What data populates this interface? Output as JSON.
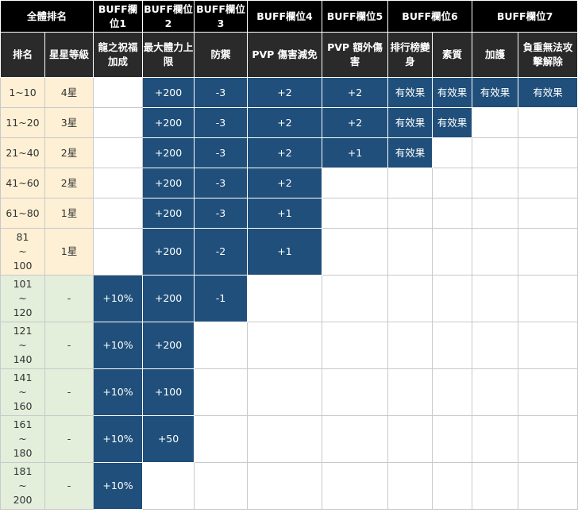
{
  "header": {
    "group": "全體排名",
    "slots": [
      "BUFF欄位1",
      "BUFF欄位2",
      "BUFF欄位3",
      "BUFF欄位4",
      "BUFF欄位5",
      "BUFF欄位6",
      "BUFF欄位7"
    ]
  },
  "subheader": [
    "排名",
    "星星等級",
    "龍之祝福加成",
    "最大體力上限",
    "防禦",
    "PVP 傷害減免",
    "PVP 額外傷害",
    "排行榜變身",
    "素質",
    "加護",
    "負重無法攻擊解除"
  ],
  "rows": [
    {
      "rank": "1~10",
      "star": "4星",
      "c1": "",
      "c2": "+200",
      "c3": "-3",
      "c4": "+2",
      "c5": "+2",
      "c6": "有效果",
      "c7": "有效果",
      "c8": "有效果",
      "c9": "有效果"
    },
    {
      "rank": "11~20",
      "star": "3星",
      "c1": "",
      "c2": "+200",
      "c3": "-3",
      "c4": "+2",
      "c5": "+2",
      "c6": "有效果",
      "c7": "有效果",
      "c8": "",
      "c9": ""
    },
    {
      "rank": "21~40",
      "star": "2星",
      "c1": "",
      "c2": "+200",
      "c3": "-3",
      "c4": "+2",
      "c5": "+1",
      "c6": "有效果",
      "c7": "",
      "c8": "",
      "c9": ""
    },
    {
      "rank": "41~60",
      "star": "2星",
      "c1": "",
      "c2": "+200",
      "c3": "-3",
      "c4": "+2",
      "c5": "",
      "c6": "",
      "c7": "",
      "c8": "",
      "c9": ""
    },
    {
      "rank": "61~80",
      "star": "1星",
      "c1": "",
      "c2": "+200",
      "c3": "-3",
      "c4": "+1",
      "c5": "",
      "c6": "",
      "c7": "",
      "c8": "",
      "c9": ""
    },
    {
      "rank": "81\n~\n100",
      "star": "1星",
      "c1": "",
      "c2": "+200",
      "c3": "-2",
      "c4": "+1",
      "c5": "",
      "c6": "",
      "c7": "",
      "c8": "",
      "c9": ""
    },
    {
      "rank": "101\n~\n120",
      "star": "-",
      "c1": "+10%",
      "c2": "+200",
      "c3": "-1",
      "c4": "",
      "c5": "",
      "c6": "",
      "c7": "",
      "c8": "",
      "c9": ""
    },
    {
      "rank": "121\n~\n140",
      "star": "-",
      "c1": "+10%",
      "c2": "+200",
      "c3": "",
      "c4": "",
      "c5": "",
      "c6": "",
      "c7": "",
      "c8": "",
      "c9": ""
    },
    {
      "rank": "141\n~\n160",
      "star": "-",
      "c1": "+10%",
      "c2": "+100",
      "c3": "",
      "c4": "",
      "c5": "",
      "c6": "",
      "c7": "",
      "c8": "",
      "c9": ""
    },
    {
      "rank": "161\n~\n180",
      "star": "-",
      "c1": "+10%",
      "c2": "+50",
      "c3": "",
      "c4": "",
      "c5": "",
      "c6": "",
      "c7": "",
      "c8": "",
      "c9": ""
    },
    {
      "rank": "181\n~\n200",
      "star": "-",
      "c1": "+10%",
      "c2": "",
      "c3": "",
      "c4": "",
      "c5": "",
      "c6": "",
      "c7": "",
      "c8": "",
      "c9": ""
    }
  ],
  "colors": {
    "header_bg": "#000000",
    "highlight": "#1f4f7a",
    "rank_top": "#fdf0d5",
    "rank_low": "#e3eedb"
  }
}
